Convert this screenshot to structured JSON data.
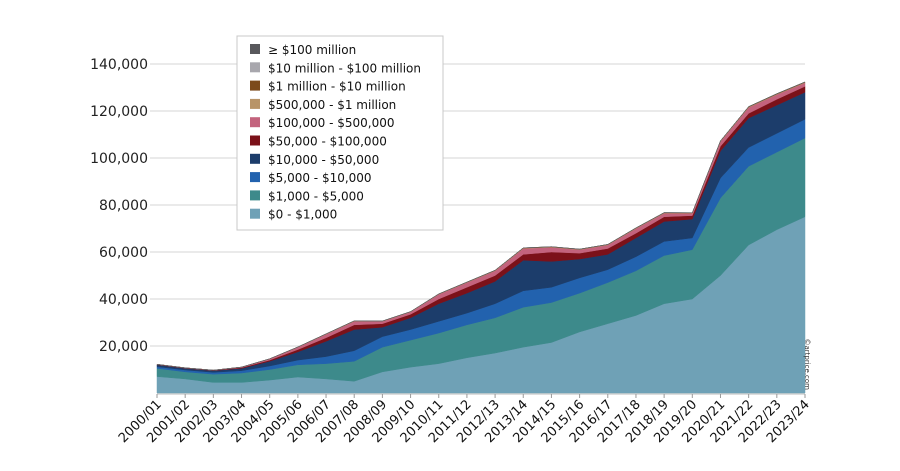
{
  "chart_data": {
    "type": "area",
    "stacked": true,
    "title": "",
    "xlabel": "",
    "ylabel": "",
    "ylim": [
      0,
      140000
    ],
    "yticks": [
      20000,
      40000,
      60000,
      80000,
      100000,
      120000,
      140000
    ],
    "ytick_labels": [
      "20,000",
      "40,000",
      "60,000",
      "80,000",
      "100,000",
      "120,000",
      "140,000"
    ],
    "grid": true,
    "legend_position": "top-left",
    "watermark": "©artprice.com",
    "categories": [
      "2000/01",
      "2001/02",
      "2002/03",
      "2003/04",
      "2004/05",
      "2005/06",
      "2006/07",
      "2007/08",
      "2008/09",
      "2009/10",
      "2010/11",
      "2011/12",
      "2012/13",
      "2013/14",
      "2014/15",
      "2015/16",
      "2016/17",
      "2017/18",
      "2018/19",
      "2019/20",
      "2020/21",
      "2021/22",
      "2022/23",
      "2023/24"
    ],
    "series": [
      {
        "name": "$0 - $1,000",
        "color": "#6fa1b6",
        "values": [
          7000,
          6000,
          4500,
          4500,
          5500,
          6800,
          6000,
          5000,
          9000,
          11000,
          12500,
          15000,
          17000,
          19500,
          21500,
          26000,
          29500,
          33000,
          38000,
          40000,
          50000,
          63000,
          69500,
          75000
        ]
      },
      {
        "name": "$1,000 - $5,000",
        "color": "#3d8a8b",
        "values": [
          3500,
          3000,
          3500,
          4000,
          4500,
          5200,
          6500,
          8500,
          10500,
          11500,
          13000,
          14000,
          15000,
          17000,
          17000,
          16500,
          17500,
          19000,
          20500,
          21000,
          33000,
          33500,
          33000,
          33500
        ]
      },
      {
        "name": "$5,000 - $10,000",
        "color": "#2262ae",
        "values": [
          700,
          800,
          800,
          1000,
          1500,
          2000,
          3000,
          4500,
          4500,
          4500,
          5000,
          5000,
          6000,
          7000,
          6500,
          6500,
          5500,
          6000,
          6000,
          5000,
          8500,
          8000,
          8000,
          8000
        ]
      },
      {
        "name": "$10,000 - $50,000",
        "color": "#1c3d6b",
        "values": [
          800,
          700,
          700,
          1000,
          2000,
          3500,
          6500,
          9000,
          4000,
          5000,
          7500,
          8500,
          9500,
          13000,
          11000,
          8000,
          6500,
          8000,
          8500,
          8000,
          11500,
          12500,
          12000,
          11500
        ]
      },
      {
        "name": "$50,000 - $100,000",
        "color": "#7b1119",
        "values": [
          150,
          100,
          150,
          300,
          500,
          1000,
          1500,
          2000,
          1500,
          1500,
          2000,
          2500,
          2500,
          2500,
          4000,
          2500,
          2500,
          2000,
          2000,
          1500,
          2000,
          2000,
          2500,
          2500
        ]
      },
      {
        "name": "$100,000 - $500,000",
        "color": "#c3637d",
        "values": [
          50,
          100,
          50,
          200,
          500,
          1000,
          1500,
          1500,
          1000,
          1000,
          2000,
          2000,
          2000,
          2500,
          2000,
          1500,
          1500,
          2000,
          1500,
          1000,
          2000,
          2500,
          2000,
          1500
        ]
      },
      {
        "name": "$500,000 - $1 million",
        "color": "#b89468",
        "values": [
          10,
          10,
          10,
          20,
          40,
          60,
          100,
          120,
          80,
          80,
          100,
          120,
          130,
          150,
          150,
          130,
          130,
          150,
          150,
          120,
          180,
          200,
          200,
          200
        ]
      },
      {
        "name": "$1 million - $10 million",
        "color": "#7c4a1c",
        "values": [
          5,
          5,
          5,
          10,
          20,
          30,
          60,
          80,
          50,
          50,
          60,
          80,
          90,
          100,
          100,
          90,
          90,
          100,
          100,
          80,
          120,
          150,
          150,
          150
        ]
      },
      {
        "name": "$10 million - $100 million",
        "color": "#a8a7ad",
        "values": [
          1,
          1,
          1,
          2,
          3,
          5,
          8,
          10,
          5,
          6,
          8,
          10,
          10,
          12,
          12,
          10,
          10,
          12,
          12,
          10,
          15,
          20,
          18,
          18
        ]
      },
      {
        "name": "≥ $100 million",
        "color": "#58585c",
        "values": [
          0,
          0,
          0,
          0,
          0,
          0,
          1,
          1,
          0,
          0,
          1,
          1,
          1,
          1,
          1,
          1,
          1,
          1,
          1,
          1,
          1,
          2,
          2,
          2
        ]
      }
    ]
  }
}
